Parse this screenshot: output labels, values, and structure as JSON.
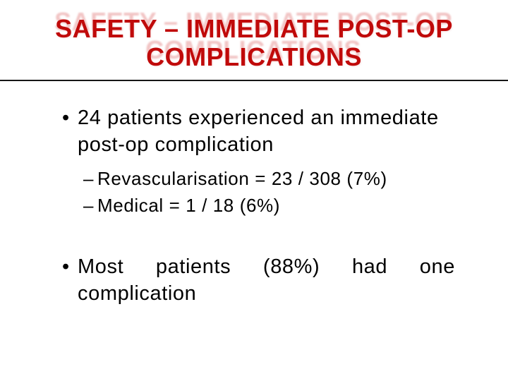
{
  "slide": {
    "title": {
      "text": "SAFETY – IMMEDIATE POST-OP COMPLICATIONS",
      "color": "#c00a0a"
    },
    "divider_color": "#161616",
    "bullets": [
      {
        "level": 1,
        "marker": "•",
        "text": "24 patients experienced an immediate post-op complication"
      },
      {
        "level": 2,
        "marker": "–",
        "text": "Revascularisation = 23 / 308 (7%)"
      },
      {
        "level": 2,
        "marker": "–",
        "text": "Medical = 1 / 18 (6%)"
      },
      {
        "level": 1,
        "marker": "•",
        "text": "Most patients (88%) had one complication",
        "justified": true
      }
    ]
  }
}
